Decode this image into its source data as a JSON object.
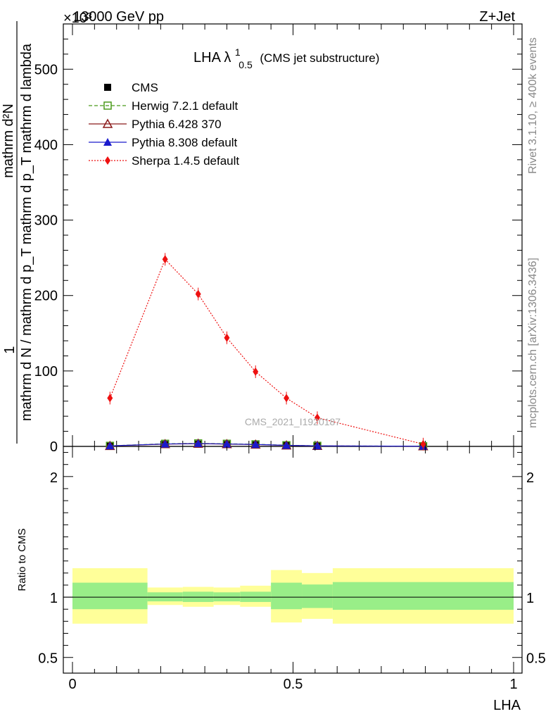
{
  "header": {
    "left": "13000 GeV pp",
    "right": "Z+Jet",
    "multiplier": "×10³"
  },
  "side_labels": {
    "rivet": "Rivet 3.1.10, ≥ 400k events",
    "mcplots": "mcplots.cern.ch [arXiv:1306.3436]"
  },
  "watermark": "CMS_2021_I1920187",
  "chart_data": [
    {
      "type": "line",
      "title": "LHA λ",
      "title_super": "1",
      "title_sub": "0.5",
      "title_suffix": "(CMS jet substructure)",
      "ylabel_numerator": "1",
      "ylabel_denominator": "mathrm d N / mathrm d p_T mathrm d p_T mathrm d lambda",
      "ylabel_top": "mathrm d²N",
      "xlim": [
        0,
        1
      ],
      "ylim": [
        0,
        560
      ],
      "y_multiplier": "10³",
      "yticks": [
        0,
        100,
        200,
        300,
        400,
        500
      ],
      "ytick_labels": [
        "0",
        "100",
        "200",
        "300",
        "400",
        "500"
      ],
      "legend_position": "top-left",
      "series": [
        {
          "name": "CMS",
          "color": "#000000",
          "marker": "square-filled",
          "x": [
            0.085,
            0.21,
            0.285,
            0.35,
            0.415,
            0.485,
            0.555,
            0.795
          ],
          "y": [
            0.5,
            2.5,
            3.0,
            2.5,
            2.0,
            1.0,
            0.5,
            0.2
          ]
        },
        {
          "name": "Herwig 7.2.1 default",
          "color": "#4a9a1a",
          "marker": "square-open",
          "line": "dashed",
          "x": [
            0.085,
            0.21,
            0.285,
            0.35,
            0.415,
            0.485,
            0.555,
            0.795
          ],
          "y": [
            0.8,
            3.5,
            4.0,
            3.5,
            2.8,
            1.6,
            0.8,
            0.2
          ]
        },
        {
          "name": "Pythia 6.428 370",
          "color": "#8b1a1a",
          "marker": "triangle-open",
          "line": "solid",
          "x": [
            0.085,
            0.21,
            0.285,
            0.35,
            0.415,
            0.485,
            0.555,
            0.795
          ],
          "y": [
            0.6,
            3.0,
            3.6,
            3.0,
            2.4,
            1.3,
            0.7,
            0.2
          ]
        },
        {
          "name": "Pythia 8.308 default",
          "color": "#1a1acc",
          "marker": "triangle-filled",
          "line": "solid",
          "x": [
            0.085,
            0.21,
            0.285,
            0.35,
            0.415,
            0.485,
            0.555,
            0.795
          ],
          "y": [
            0.7,
            3.2,
            3.8,
            3.2,
            2.6,
            1.4,
            0.7,
            0.2
          ]
        },
        {
          "name": "Sherpa 1.4.5 default",
          "color": "#ee1111",
          "marker": "diamond-filled",
          "line": "dotted",
          "x": [
            0.085,
            0.21,
            0.285,
            0.35,
            0.415,
            0.485,
            0.555,
            0.795
          ],
          "y": [
            64,
            248,
            202,
            144,
            99,
            64,
            38,
            3
          ]
        }
      ]
    },
    {
      "type": "area",
      "ylabel": "Ratio to CMS",
      "xlabel": "LHA",
      "xlim": [
        0,
        1
      ],
      "ylim": [
        0.37,
        2.25
      ],
      "yticks": [
        0.5,
        1,
        2
      ],
      "ytick_labels": [
        "0.5",
        "1",
        "2"
      ],
      "xticks": [
        0,
        0.5,
        1
      ],
      "xtick_labels": [
        "0",
        "0.5",
        "1"
      ],
      "reference_line": 1,
      "bins": [
        {
          "x0": 0.0,
          "x1": 0.17,
          "green": [
            0.9,
            1.12
          ],
          "yellow": [
            0.78,
            1.24
          ]
        },
        {
          "x0": 0.17,
          "x1": 0.25,
          "green": [
            0.965,
            1.04
          ],
          "yellow": [
            0.935,
            1.08
          ]
        },
        {
          "x0": 0.25,
          "x1": 0.32,
          "green": [
            0.96,
            1.045
          ],
          "yellow": [
            0.92,
            1.085
          ]
        },
        {
          "x0": 0.32,
          "x1": 0.38,
          "green": [
            0.965,
            1.04
          ],
          "yellow": [
            0.935,
            1.08
          ]
        },
        {
          "x0": 0.38,
          "x1": 0.45,
          "green": [
            0.96,
            1.045
          ],
          "yellow": [
            0.92,
            1.095
          ]
        },
        {
          "x0": 0.45,
          "x1": 0.52,
          "green": [
            0.9,
            1.12
          ],
          "yellow": [
            0.79,
            1.225
          ]
        },
        {
          "x0": 0.52,
          "x1": 0.59,
          "green": [
            0.91,
            1.105
          ],
          "yellow": [
            0.82,
            1.2
          ]
        },
        {
          "x0": 0.59,
          "x1": 1.0,
          "green": [
            0.895,
            1.125
          ],
          "yellow": [
            0.78,
            1.24
          ]
        }
      ]
    }
  ]
}
